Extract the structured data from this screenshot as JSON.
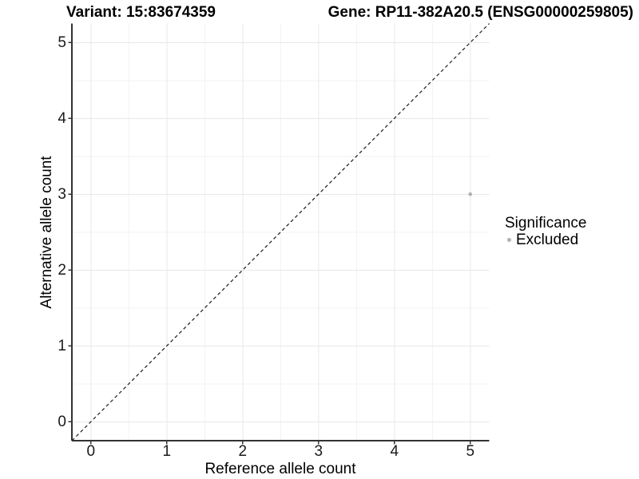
{
  "header": {
    "title_left": "Variant: 15:83674359",
    "title_right": "Gene: RP11-382A20.5 (ENSG00000259805)"
  },
  "legend": {
    "title": "Significance",
    "items": [
      {
        "label": "Excluded",
        "color": "#b0b0b0"
      }
    ]
  },
  "chart_data": {
    "type": "scatter",
    "title": "Variant: 15:83674359    Gene: RP11-382A20.5 (ENSG00000259805)",
    "xlabel": "Reference allele count",
    "ylabel": "Alternative allele count",
    "xlim": [
      -0.25,
      5.25
    ],
    "ylim": [
      -0.25,
      5.25
    ],
    "xticks": [
      0,
      1,
      2,
      3,
      4,
      5
    ],
    "yticks": [
      0,
      1,
      2,
      3,
      4,
      5
    ],
    "grid": {
      "major": true,
      "minor": true,
      "major_color": "#e8e8e8",
      "minor_color": "#f3f3f3"
    },
    "axis_line_color": "#333333",
    "tick_label_color": "#1a1a1a",
    "legend_position": "right",
    "series": [
      {
        "name": "Excluded",
        "color": "#b0b0b0",
        "points": [
          {
            "x": 5,
            "y": 3
          }
        ]
      }
    ],
    "reference_line": {
      "type": "identity",
      "equation": "y = x",
      "style": "dashed",
      "color": "#1a1a1a"
    }
  }
}
